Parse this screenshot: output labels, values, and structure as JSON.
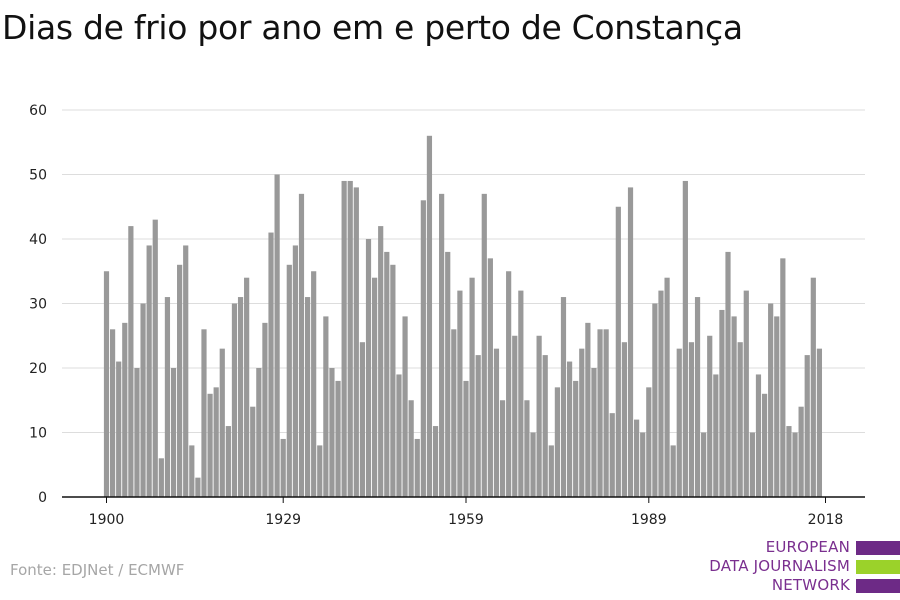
{
  "title": "Dias de frio por ano em e perto de Constança",
  "source": "Fonte: EDJNet / ECMWF",
  "logo": {
    "lines": [
      "EUROPEAN",
      "DATA JOURNALISM",
      "NETWORK"
    ],
    "colors": [
      "#6d2a86",
      "#9bd22a",
      "#6d2a86"
    ]
  },
  "colors": {
    "bar": "#999999",
    "grid": "#dddddd",
    "axis": "#111111",
    "tick_label": "#222222"
  },
  "chart_data": {
    "type": "bar",
    "title": "Dias de frio por ano em e perto de Constança",
    "xlabel": "",
    "ylabel": "",
    "x_start": 1900,
    "x_end": 2018,
    "x_ticks": [
      1900,
      1929,
      1959,
      1989,
      2018
    ],
    "y_ticks": [
      0,
      10,
      20,
      30,
      40,
      50,
      60
    ],
    "ylim": [
      0,
      60
    ],
    "grid": true,
    "values": [
      35,
      26,
      21,
      27,
      42,
      20,
      30,
      39,
      43,
      6,
      31,
      20,
      36,
      39,
      8,
      3,
      26,
      16,
      17,
      23,
      11,
      30,
      31,
      34,
      14,
      20,
      27,
      41,
      50,
      9,
      36,
      39,
      47,
      31,
      35,
      8,
      28,
      20,
      18,
      49,
      49,
      48,
      24,
      40,
      34,
      42,
      38,
      36,
      19,
      28,
      15,
      9,
      46,
      56,
      11,
      47,
      38,
      26,
      32,
      18,
      34,
      22,
      47,
      37,
      23,
      15,
      35,
      25,
      32,
      15,
      10,
      25,
      22,
      8,
      17,
      31,
      21,
      18,
      23,
      27,
      20,
      26,
      26,
      13,
      45,
      24,
      48,
      12,
      10,
      17,
      30,
      32,
      34,
      8,
      23,
      49,
      24,
      31,
      10,
      25,
      19,
      29,
      38,
      28,
      24,
      32,
      10,
      19,
      16,
      30,
      28,
      37,
      11,
      10,
      14,
      22,
      34,
      23
    ]
  }
}
